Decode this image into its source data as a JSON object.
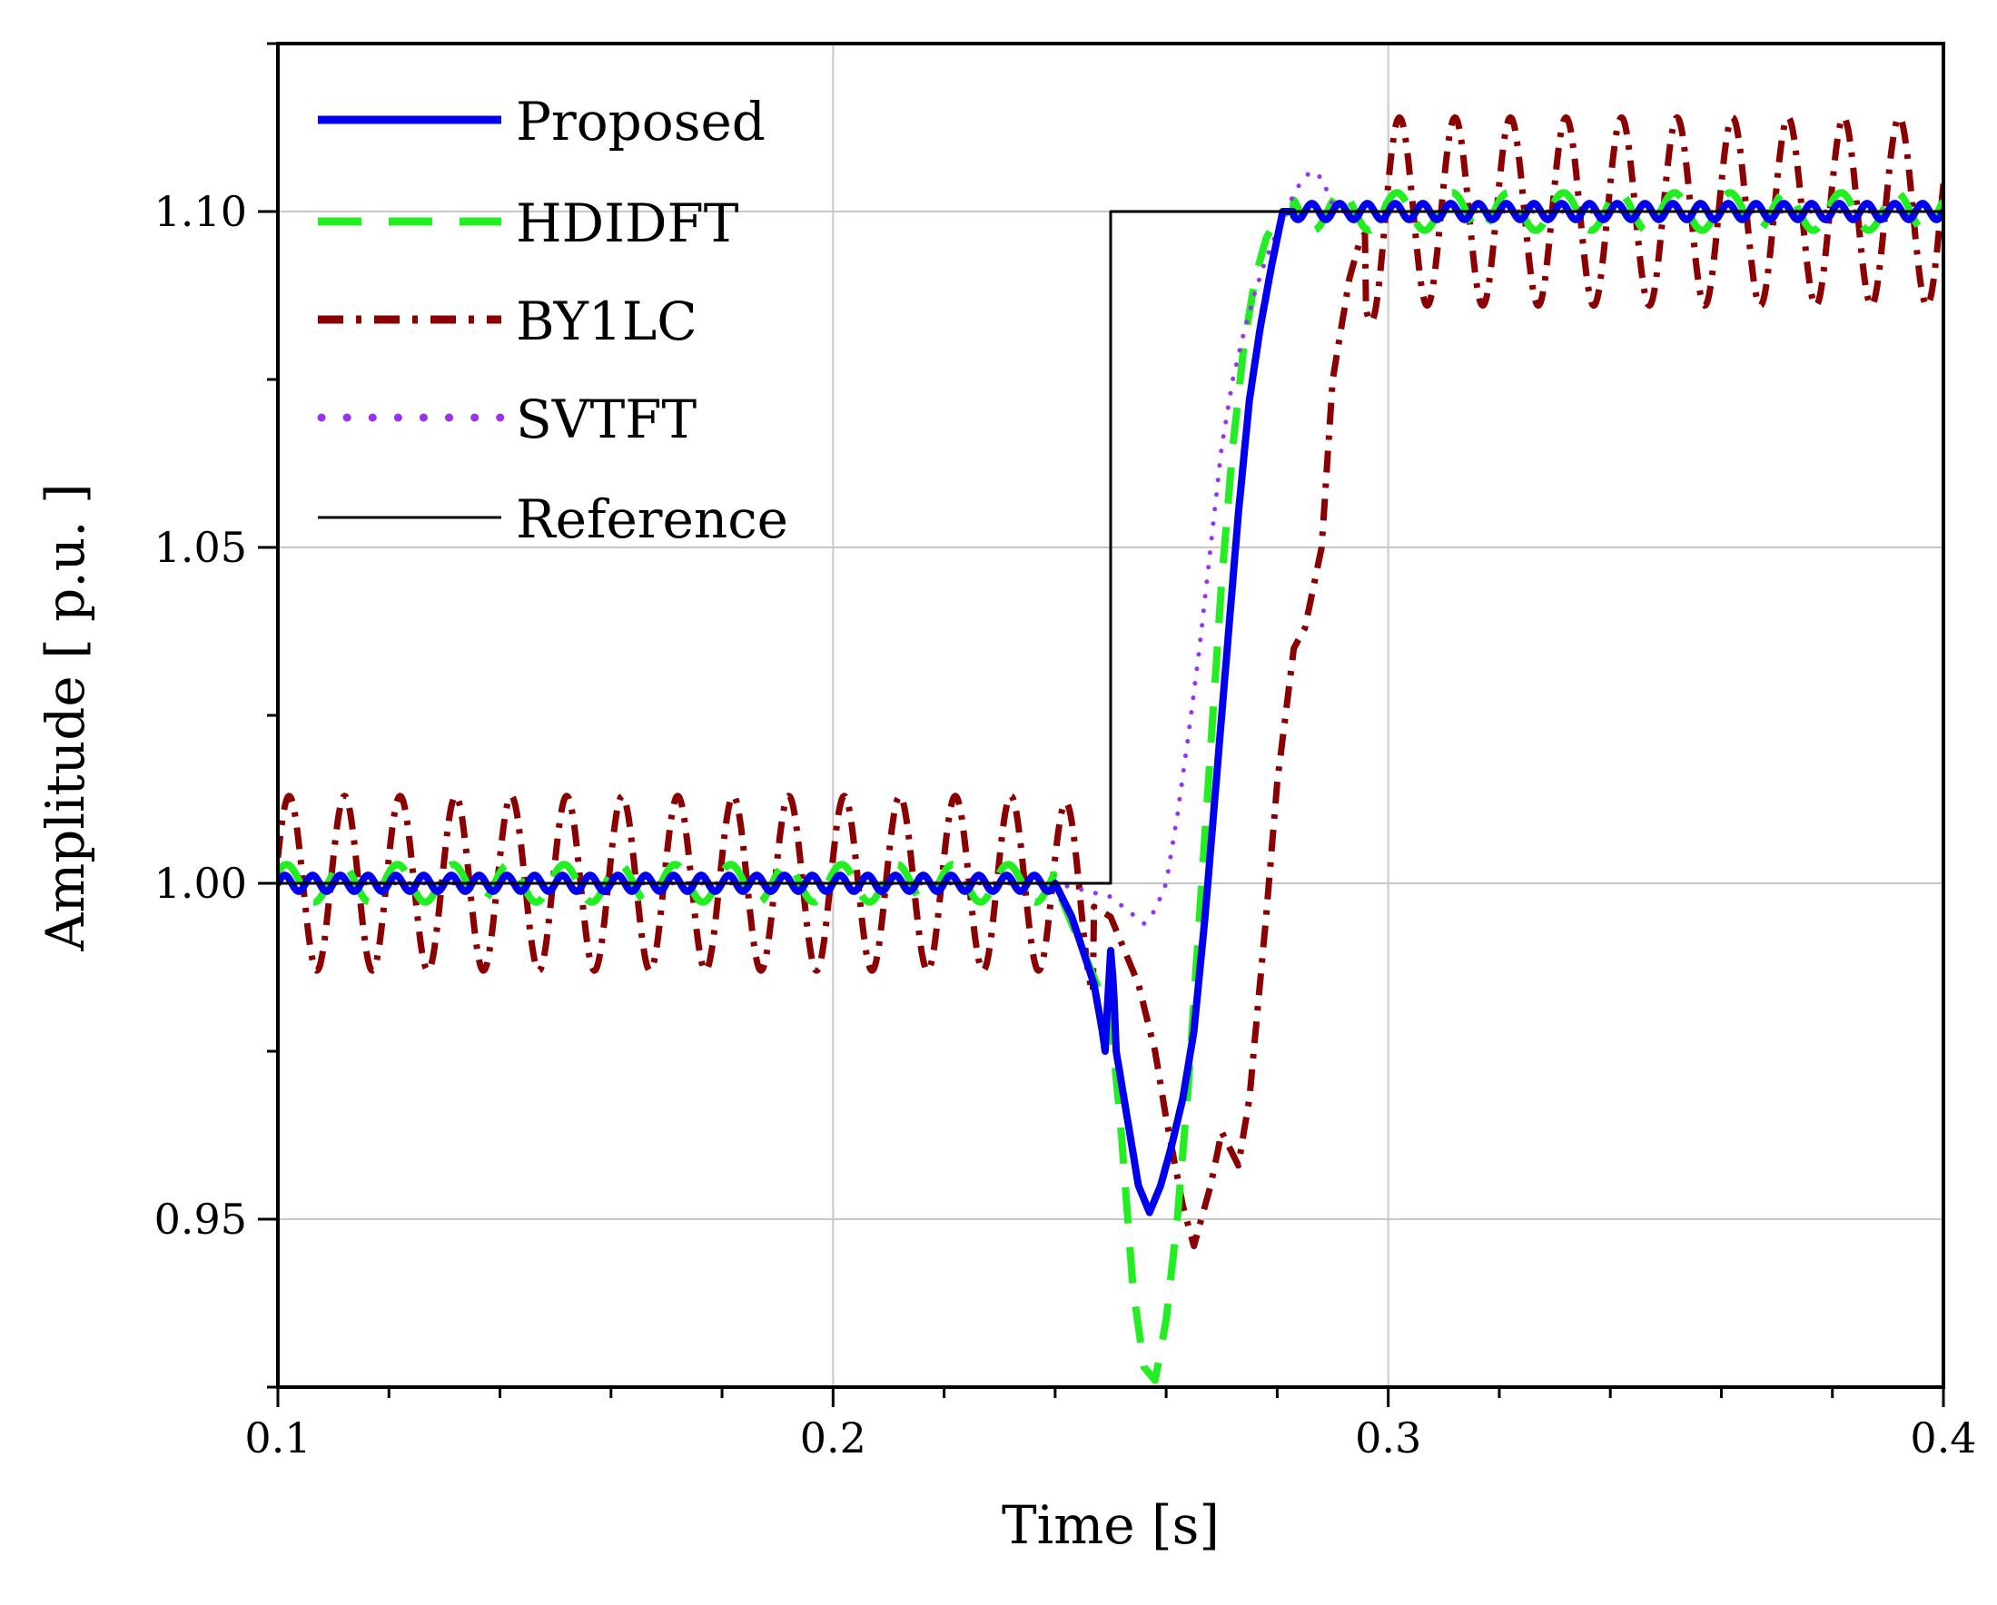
{
  "chart_data": {
    "type": "line",
    "title": "",
    "xlabel": "Time [s]",
    "ylabel": "Amplitude [ p.u. ]",
    "xlim": [
      0.1,
      0.4
    ],
    "ylim": [
      0.925,
      1.125
    ],
    "x_ticks": [
      0.1,
      0.2,
      0.3,
      0.4
    ],
    "x_tick_labels": [
      "0.1",
      "0.2",
      "0.3",
      "0.4"
    ],
    "y_ticks": [
      0.95,
      1.0,
      1.05,
      1.1
    ],
    "y_tick_labels": [
      "0.95",
      "1.00",
      "1.05",
      "1.10"
    ],
    "grid": true,
    "legend_position": "top-left",
    "series": [
      {
        "name": "Proposed",
        "color": "#0000ee",
        "style": "solid",
        "x": [
          0.1,
          0.12,
          0.14,
          0.16,
          0.18,
          0.2,
          0.22,
          0.24,
          0.243,
          0.245,
          0.247,
          0.2485,
          0.249,
          0.2495,
          0.25,
          0.2505,
          0.251,
          0.253,
          0.255,
          0.257,
          0.259,
          0.261,
          0.263,
          0.265,
          0.267,
          0.269,
          0.271,
          0.273,
          0.275,
          0.277,
          0.279,
          0.281,
          0.283,
          0.29,
          0.3,
          0.32,
          0.34,
          0.36,
          0.38,
          0.4
        ],
        "y": [
          1.0,
          1.0,
          1.0,
          1.0,
          1.0,
          1.0,
          1.0,
          1.0,
          0.995,
          0.99,
          0.985,
          0.978,
          0.975,
          0.983,
          0.99,
          0.985,
          0.975,
          0.965,
          0.955,
          0.951,
          0.955,
          0.961,
          0.968,
          0.978,
          0.995,
          1.015,
          1.035,
          1.055,
          1.072,
          1.083,
          1.092,
          1.1,
          1.1,
          1.1,
          1.1,
          1.1,
          1.1,
          1.1,
          1.1,
          1.1
        ]
      },
      {
        "name": "HDIDFT",
        "color": "#22ee22",
        "style": "dashed",
        "x": [
          0.1,
          0.12,
          0.14,
          0.16,
          0.18,
          0.2,
          0.22,
          0.24,
          0.245,
          0.25,
          0.252,
          0.254,
          0.256,
          0.258,
          0.26,
          0.262,
          0.264,
          0.266,
          0.268,
          0.27,
          0.272,
          0.274,
          0.276,
          0.278,
          0.28,
          0.282,
          0.29,
          0.3,
          0.32,
          0.34,
          0.36,
          0.38,
          0.4
        ],
        "y": [
          1.0,
          1.0,
          1.0,
          1.0,
          1.0,
          1.0,
          1.0,
          1.0,
          0.99,
          0.98,
          0.962,
          0.94,
          0.928,
          0.926,
          0.935,
          0.95,
          0.97,
          0.995,
          1.02,
          1.045,
          1.065,
          1.08,
          1.09,
          1.096,
          1.099,
          1.1,
          1.1,
          1.1,
          1.1,
          1.1,
          1.1,
          1.1,
          1.1
        ]
      },
      {
        "name": "BY1LC",
        "color": "#8b0000",
        "style": "dash-dot",
        "x": [
          0.1,
          0.12,
          0.14,
          0.16,
          0.18,
          0.2,
          0.22,
          0.24,
          0.25,
          0.255,
          0.258,
          0.26,
          0.263,
          0.265,
          0.268,
          0.27,
          0.273,
          0.275,
          0.278,
          0.28,
          0.283,
          0.285,
          0.288,
          0.29,
          0.293,
          0.295,
          0.3,
          0.32,
          0.34,
          0.36,
          0.38,
          0.4
        ],
        "y": [
          1.0,
          1.0,
          1.0,
          1.0,
          1.0,
          1.0,
          1.0,
          1.0,
          0.995,
          0.985,
          0.975,
          0.965,
          0.952,
          0.946,
          0.955,
          0.963,
          0.958,
          0.968,
          0.995,
          1.015,
          1.035,
          1.038,
          1.05,
          1.075,
          1.09,
          1.096,
          1.1,
          1.1,
          1.1,
          1.1,
          1.1,
          1.1
        ]
      },
      {
        "name": "SVTFT",
        "color": "#9933ee",
        "style": "dotted",
        "x": [
          0.1,
          0.12,
          0.14,
          0.16,
          0.18,
          0.2,
          0.22,
          0.24,
          0.25,
          0.253,
          0.256,
          0.258,
          0.26,
          0.262,
          0.264,
          0.266,
          0.268,
          0.27,
          0.272,
          0.274,
          0.276,
          0.278,
          0.28,
          0.282,
          0.284,
          0.286,
          0.288,
          0.29,
          0.292,
          0.295,
          0.3,
          0.32,
          0.34,
          0.36,
          0.38,
          0.4
        ],
        "y": [
          1.0,
          1.0,
          1.0,
          1.0,
          1.0,
          1.0,
          1.0,
          1.0,
          0.998,
          0.996,
          0.994,
          0.996,
          1.0,
          1.01,
          1.022,
          1.035,
          1.05,
          1.065,
          1.075,
          1.082,
          1.088,
          1.093,
          1.097,
          1.101,
          1.104,
          1.106,
          1.105,
          1.101,
          1.1,
          1.1,
          1.1,
          1.1,
          1.1,
          1.1,
          1.1,
          1.1
        ]
      },
      {
        "name": "Reference",
        "color": "#000000",
        "style": "solid-thin",
        "x": [
          0.1,
          0.25,
          0.25,
          0.4
        ],
        "y": [
          1.0,
          1.0,
          1.1,
          1.1
        ]
      }
    ]
  }
}
